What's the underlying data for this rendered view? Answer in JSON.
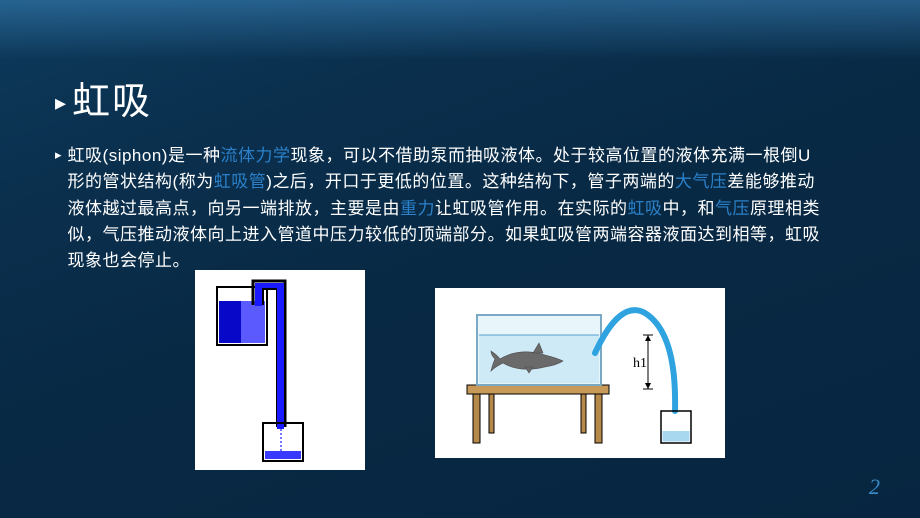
{
  "slide": {
    "title": "虹吸",
    "paragraph_segments": [
      {
        "t": "虹吸(siphon)是一种",
        "hl": false
      },
      {
        "t": "流体力学",
        "hl": true
      },
      {
        "t": "现象，可以不借助泵而抽吸液体。处于较高位置的液体充满一根倒U形的管状结构(称为",
        "hl": false
      },
      {
        "t": "虹吸管",
        "hl": true
      },
      {
        "t": ")之后，开口于更低的位置。这种结构下，管子两端的",
        "hl": false
      },
      {
        "t": "大气压",
        "hl": true
      },
      {
        "t": "差能够推动液体越过最高点，向另一端排放，主要是由",
        "hl": false
      },
      {
        "t": "重力",
        "hl": true
      },
      {
        "t": "让虹吸管作用。在实际的",
        "hl": false
      },
      {
        "t": "虹吸",
        "hl": true
      },
      {
        "t": "中，和",
        "hl": false
      },
      {
        "t": "气压",
        "hl": true
      },
      {
        "t": "原理相类似，气压推动液体向上进入管道中压力较低的顶端部分。如果虹吸管两端容器液面达到相等，虹吸现象也会停止。",
        "hl": false
      }
    ],
    "page_number": "2",
    "fig2_label": "h1"
  },
  "style": {
    "bg_gradient_stops": [
      "#0d3a5c",
      "#0a2f4d",
      "#082944",
      "#072540"
    ],
    "highlight_color": "#2b81c9",
    "text_color": "#ffffff",
    "pagenum_color": "#3a8bc8",
    "title_fontsize": 38,
    "body_fontsize": 17,
    "line_height": 1.55,
    "fig_colors": {
      "beaker_outline": "#000000",
      "water_dark": "#1a1aff",
      "water_light": "#a8d8f0",
      "tank_fill": "#cfeaf7",
      "tank_border": "#7aa9c4",
      "tube_blue": "#2fa3e0",
      "table_brown": "#b5894a",
      "fish_gray": "#6a6a6a"
    }
  }
}
